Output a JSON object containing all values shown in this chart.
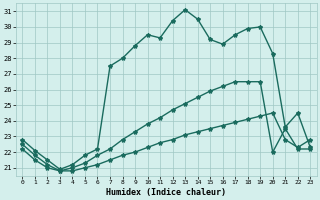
{
  "xlabel": "Humidex (Indice chaleur)",
  "xlim": [
    -0.5,
    23.5
  ],
  "ylim": [
    20.5,
    31.5
  ],
  "yticks": [
    21,
    22,
    23,
    24,
    25,
    26,
    27,
    28,
    29,
    30,
    31
  ],
  "xticks": [
    0,
    1,
    2,
    3,
    4,
    5,
    6,
    7,
    8,
    9,
    10,
    11,
    12,
    13,
    14,
    15,
    16,
    17,
    18,
    19,
    20,
    21,
    22,
    23
  ],
  "background_color": "#d4efec",
  "grid_color": "#a0c8c4",
  "line_color": "#1a6b5e",
  "line1_y": [
    22.8,
    22.1,
    21.5,
    20.9,
    21.2,
    21.8,
    22.2,
    27.5,
    28.0,
    28.8,
    29.5,
    29.3,
    30.4,
    31.1,
    30.5,
    29.2,
    28.9,
    29.5,
    29.9,
    30.0,
    28.3,
    23.6,
    24.5,
    22.3
  ],
  "line2_y": [
    22.5,
    21.8,
    21.2,
    20.8,
    21.0,
    21.3,
    21.8,
    22.2,
    22.8,
    23.3,
    23.8,
    24.2,
    24.7,
    25.1,
    25.5,
    25.9,
    26.2,
    26.5,
    26.5,
    26.5,
    22.0,
    23.5,
    22.2,
    22.2
  ],
  "line3_y": [
    22.2,
    21.5,
    21.0,
    20.8,
    20.8,
    21.0,
    21.2,
    21.5,
    21.8,
    22.0,
    22.3,
    22.6,
    22.8,
    23.1,
    23.3,
    23.5,
    23.7,
    23.9,
    24.1,
    24.3,
    24.5,
    22.8,
    22.3,
    22.8
  ],
  "marker": "*",
  "marker_size": 3,
  "line_width": 1.0
}
